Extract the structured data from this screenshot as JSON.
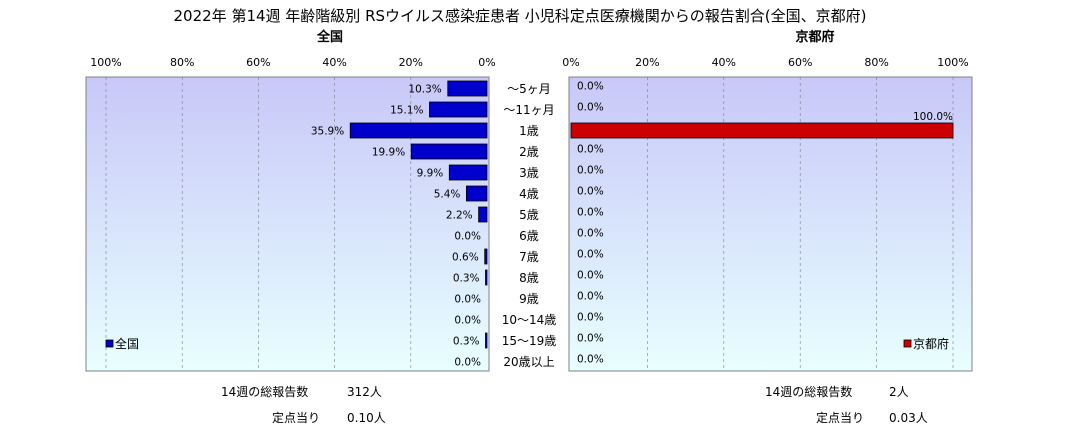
{
  "title": "2022年 第14週 年齢階級別 RSウイルス感染症患者 小児科定点医療機関からの報告割合(全国、京都府)",
  "colors": {
    "national": "#0000cc",
    "kyoto": "#cc0000",
    "panel_top": "#c8c8f8",
    "panel_bottom": "#e8ffff"
  },
  "chart_data": [
    {
      "type": "bar",
      "orientation": "horizontal",
      "title": "全国",
      "xlim": [
        0,
        100
      ],
      "x_direction": "reversed",
      "ticks": [
        "100%",
        "80%",
        "60%",
        "40%",
        "20%",
        "0%"
      ],
      "categories": [
        "～5ヶ月",
        "～11ヶ月",
        "1歳",
        "2歳",
        "3歳",
        "4歳",
        "5歳",
        "6歳",
        "7歳",
        "8歳",
        "9歳",
        "10～14歳",
        "15～19歳",
        "20歳以上"
      ],
      "series": [
        {
          "name": "全国",
          "color": "#0000cc",
          "values": [
            10.3,
            15.1,
            35.9,
            19.9,
            9.9,
            5.4,
            2.2,
            0.0,
            0.6,
            0.3,
            0.0,
            0.0,
            0.3,
            0.0
          ],
          "labels": [
            "10.3%",
            "15.1%",
            "35.9%",
            "19.9%",
            "9.9%",
            "5.4%",
            "2.2%",
            "0.0%",
            "0.6%",
            "0.3%",
            "0.0%",
            "0.0%",
            "0.3%",
            "0.0%"
          ]
        }
      ],
      "legend": "bottom-left",
      "grid": true
    },
    {
      "type": "bar",
      "orientation": "horizontal",
      "title": "京都府",
      "xlim": [
        0,
        100
      ],
      "ticks": [
        "0%",
        "20%",
        "40%",
        "60%",
        "80%",
        "100%"
      ],
      "categories": [
        "～5ヶ月",
        "～11ヶ月",
        "1歳",
        "2歳",
        "3歳",
        "4歳",
        "5歳",
        "6歳",
        "7歳",
        "8歳",
        "9歳",
        "10～14歳",
        "15～19歳",
        "20歳以上"
      ],
      "series": [
        {
          "name": "京都府",
          "color": "#cc0000",
          "values": [
            0.0,
            0.0,
            100.0,
            0.0,
            0.0,
            0.0,
            0.0,
            0.0,
            0.0,
            0.0,
            0.0,
            0.0,
            0.0,
            0.0
          ],
          "labels": [
            "0.0%",
            "0.0%",
            "100.0%",
            "0.0%",
            "0.0%",
            "0.0%",
            "0.0%",
            "0.0%",
            "0.0%",
            "0.0%",
            "0.0%",
            "0.0%",
            "0.0%",
            "0.0%"
          ]
        }
      ],
      "legend": "bottom-right",
      "grid": true
    }
  ],
  "footer": {
    "national": {
      "total_label": "14週の総報告数",
      "total_value": "312人",
      "per_label": "定点当り",
      "per_value": "0.10人"
    },
    "kyoto": {
      "total_label": "14週の総報告数",
      "total_value": "2人",
      "per_label": "定点当り",
      "per_value": "0.03人"
    }
  }
}
